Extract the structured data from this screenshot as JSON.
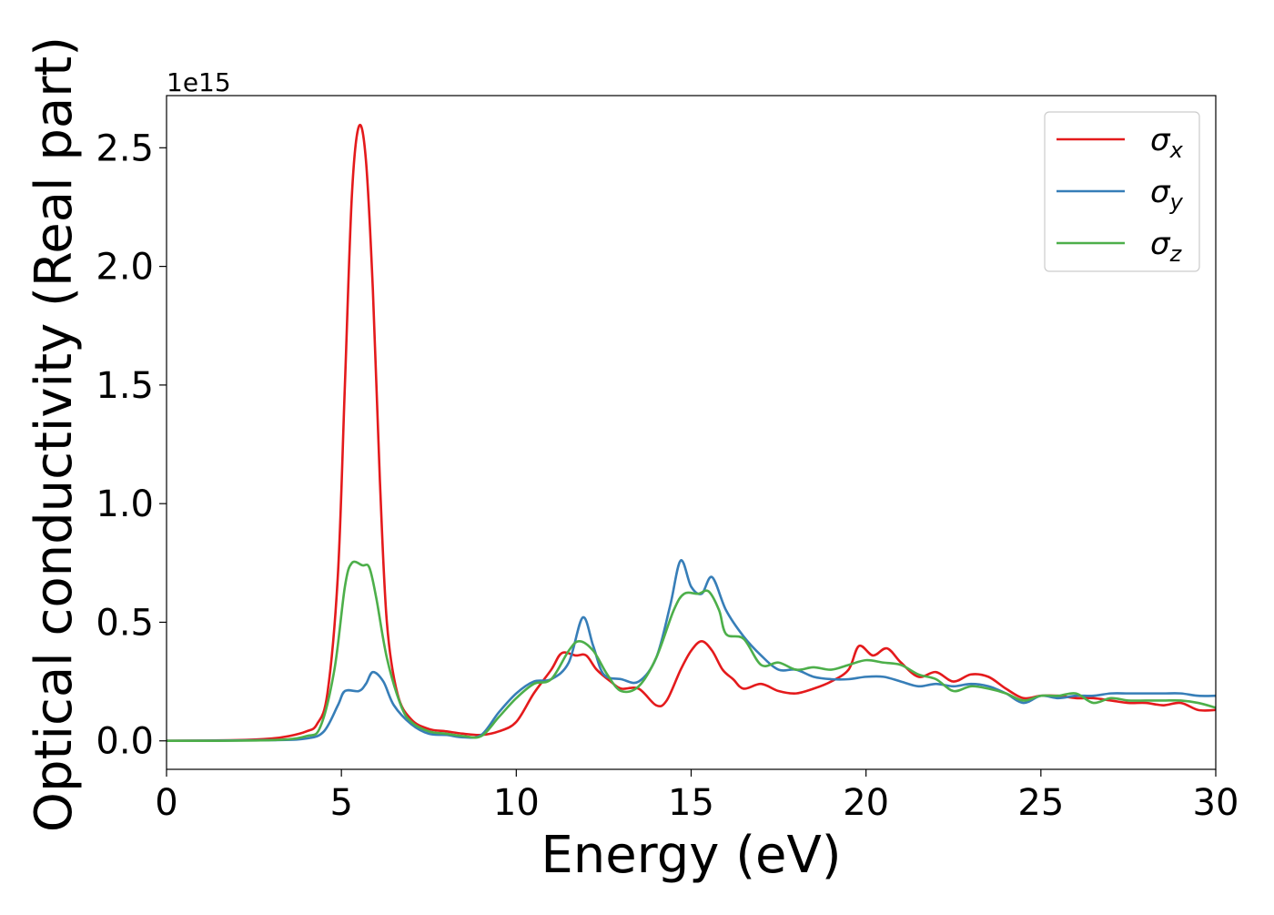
{
  "chart_data": {
    "type": "line",
    "title": "",
    "xlabel": "Energy (eV)",
    "ylabel": "Optical conductivity (Real part)",
    "y_offset_text": "1e15",
    "xlim": [
      0,
      30
    ],
    "ylim": [
      -0.12,
      2.72
    ],
    "x_ticks": [
      0,
      5,
      10,
      15,
      20,
      25,
      30
    ],
    "x_tick_labels": [
      "0",
      "5",
      "10",
      "15",
      "20",
      "25",
      "30"
    ],
    "y_ticks": [
      0.0,
      0.5,
      1.0,
      1.5,
      2.0,
      2.5
    ],
    "y_tick_labels": [
      "0.0",
      "0.5",
      "1.0",
      "1.5",
      "2.0",
      "2.5"
    ],
    "grid": false,
    "legend_position": "top-right",
    "series": [
      {
        "name": "σx",
        "legend_symbol": "σ",
        "legend_subscript": "x",
        "color": "#e41a1c",
        "points": [
          [
            0,
            0
          ],
          [
            2,
            0.003
          ],
          [
            3,
            0.01
          ],
          [
            3.5,
            0.02
          ],
          [
            4,
            0.04
          ],
          [
            4.3,
            0.07
          ],
          [
            4.6,
            0.2
          ],
          [
            4.9,
            0.7
          ],
          [
            5.1,
            1.5
          ],
          [
            5.3,
            2.3
          ],
          [
            5.5,
            2.59
          ],
          [
            5.7,
            2.45
          ],
          [
            5.9,
            1.9
          ],
          [
            6.1,
            1.1
          ],
          [
            6.3,
            0.5
          ],
          [
            6.6,
            0.2
          ],
          [
            7,
            0.09
          ],
          [
            7.5,
            0.05
          ],
          [
            8,
            0.04
          ],
          [
            8.5,
            0.03
          ],
          [
            9,
            0.025
          ],
          [
            9.5,
            0.04
          ],
          [
            10,
            0.08
          ],
          [
            10.5,
            0.2
          ],
          [
            11,
            0.3
          ],
          [
            11.3,
            0.37
          ],
          [
            11.7,
            0.36
          ],
          [
            12,
            0.36
          ],
          [
            12.3,
            0.3
          ],
          [
            12.7,
            0.25
          ],
          [
            13,
            0.22
          ],
          [
            13.5,
            0.22
          ],
          [
            14,
            0.15
          ],
          [
            14.3,
            0.17
          ],
          [
            14.7,
            0.3
          ],
          [
            15,
            0.38
          ],
          [
            15.3,
            0.42
          ],
          [
            15.6,
            0.38
          ],
          [
            15.9,
            0.3
          ],
          [
            16.2,
            0.26
          ],
          [
            16.5,
            0.22
          ],
          [
            17,
            0.24
          ],
          [
            17.5,
            0.21
          ],
          [
            18,
            0.2
          ],
          [
            18.5,
            0.22
          ],
          [
            19,
            0.25
          ],
          [
            19.5,
            0.3
          ],
          [
            19.8,
            0.4
          ],
          [
            20.2,
            0.36
          ],
          [
            20.6,
            0.39
          ],
          [
            21,
            0.33
          ],
          [
            21.5,
            0.27
          ],
          [
            22,
            0.29
          ],
          [
            22.5,
            0.25
          ],
          [
            23,
            0.28
          ],
          [
            23.5,
            0.27
          ],
          [
            24,
            0.22
          ],
          [
            24.5,
            0.18
          ],
          [
            25,
            0.19
          ],
          [
            25.5,
            0.19
          ],
          [
            26,
            0.18
          ],
          [
            26.5,
            0.18
          ],
          [
            27,
            0.17
          ],
          [
            27.5,
            0.16
          ],
          [
            28,
            0.16
          ],
          [
            28.5,
            0.15
          ],
          [
            29,
            0.16
          ],
          [
            29.5,
            0.13
          ],
          [
            30,
            0.13
          ]
        ]
      },
      {
        "name": "σy",
        "legend_symbol": "σ",
        "legend_subscript": "y",
        "color": "#377eb8",
        "points": [
          [
            0,
            0
          ],
          [
            3,
            0.003
          ],
          [
            4,
            0.01
          ],
          [
            4.5,
            0.04
          ],
          [
            4.9,
            0.15
          ],
          [
            5.1,
            0.21
          ],
          [
            5.5,
            0.21
          ],
          [
            5.7,
            0.24
          ],
          [
            5.9,
            0.29
          ],
          [
            6.2,
            0.25
          ],
          [
            6.5,
            0.15
          ],
          [
            7,
            0.07
          ],
          [
            7.5,
            0.03
          ],
          [
            8,
            0.025
          ],
          [
            8.5,
            0.015
          ],
          [
            9,
            0.025
          ],
          [
            9.5,
            0.12
          ],
          [
            10,
            0.2
          ],
          [
            10.5,
            0.25
          ],
          [
            11,
            0.26
          ],
          [
            11.5,
            0.33
          ],
          [
            11.9,
            0.52
          ],
          [
            12.2,
            0.4
          ],
          [
            12.5,
            0.28
          ],
          [
            13,
            0.26
          ],
          [
            13.5,
            0.25
          ],
          [
            14,
            0.35
          ],
          [
            14.4,
            0.57
          ],
          [
            14.7,
            0.76
          ],
          [
            15,
            0.65
          ],
          [
            15.3,
            0.62
          ],
          [
            15.6,
            0.69
          ],
          [
            16,
            0.55
          ],
          [
            16.5,
            0.44
          ],
          [
            17,
            0.36
          ],
          [
            17.5,
            0.3
          ],
          [
            18,
            0.3
          ],
          [
            18.5,
            0.27
          ],
          [
            19,
            0.26
          ],
          [
            19.5,
            0.26
          ],
          [
            20,
            0.27
          ],
          [
            20.5,
            0.27
          ],
          [
            21,
            0.25
          ],
          [
            21.5,
            0.23
          ],
          [
            22,
            0.24
          ],
          [
            22.5,
            0.23
          ],
          [
            23,
            0.24
          ],
          [
            23.5,
            0.23
          ],
          [
            24,
            0.2
          ],
          [
            24.5,
            0.16
          ],
          [
            25,
            0.19
          ],
          [
            25.5,
            0.18
          ],
          [
            26,
            0.19
          ],
          [
            26.5,
            0.19
          ],
          [
            27,
            0.2
          ],
          [
            27.5,
            0.2
          ],
          [
            28,
            0.2
          ],
          [
            28.5,
            0.2
          ],
          [
            29,
            0.2
          ],
          [
            29.5,
            0.19
          ],
          [
            30,
            0.19
          ]
        ]
      },
      {
        "name": "σz",
        "legend_symbol": "σ",
        "legend_subscript": "z",
        "color": "#4daf4a",
        "points": [
          [
            0,
            0
          ],
          [
            3,
            0.003
          ],
          [
            4,
            0.02
          ],
          [
            4.4,
            0.06
          ],
          [
            4.8,
            0.3
          ],
          [
            5.1,
            0.65
          ],
          [
            5.3,
            0.75
          ],
          [
            5.6,
            0.74
          ],
          [
            5.8,
            0.73
          ],
          [
            6,
            0.6
          ],
          [
            6.3,
            0.35
          ],
          [
            6.7,
            0.15
          ],
          [
            7,
            0.08
          ],
          [
            7.5,
            0.04
          ],
          [
            8,
            0.03
          ],
          [
            8.5,
            0.02
          ],
          [
            9,
            0.02
          ],
          [
            9.5,
            0.1
          ],
          [
            10,
            0.18
          ],
          [
            10.5,
            0.24
          ],
          [
            11,
            0.26
          ],
          [
            11.5,
            0.38
          ],
          [
            11.8,
            0.42
          ],
          [
            12.2,
            0.38
          ],
          [
            12.6,
            0.28
          ],
          [
            13,
            0.21
          ],
          [
            13.5,
            0.23
          ],
          [
            14,
            0.35
          ],
          [
            14.5,
            0.55
          ],
          [
            14.8,
            0.62
          ],
          [
            15.2,
            0.62
          ],
          [
            15.5,
            0.63
          ],
          [
            15.8,
            0.55
          ],
          [
            16,
            0.45
          ],
          [
            16.5,
            0.43
          ],
          [
            17,
            0.32
          ],
          [
            17.5,
            0.33
          ],
          [
            18,
            0.3
          ],
          [
            18.5,
            0.31
          ],
          [
            19,
            0.3
          ],
          [
            19.5,
            0.32
          ],
          [
            20,
            0.34
          ],
          [
            20.5,
            0.33
          ],
          [
            21,
            0.32
          ],
          [
            21.5,
            0.28
          ],
          [
            22,
            0.26
          ],
          [
            22.5,
            0.21
          ],
          [
            23,
            0.23
          ],
          [
            23.5,
            0.22
          ],
          [
            24,
            0.2
          ],
          [
            24.5,
            0.17
          ],
          [
            25,
            0.19
          ],
          [
            25.5,
            0.19
          ],
          [
            26,
            0.2
          ],
          [
            26.5,
            0.16
          ],
          [
            27,
            0.18
          ],
          [
            27.5,
            0.17
          ],
          [
            28,
            0.17
          ],
          [
            28.5,
            0.17
          ],
          [
            29,
            0.17
          ],
          [
            29.5,
            0.16
          ],
          [
            30,
            0.14
          ]
        ]
      }
    ]
  }
}
